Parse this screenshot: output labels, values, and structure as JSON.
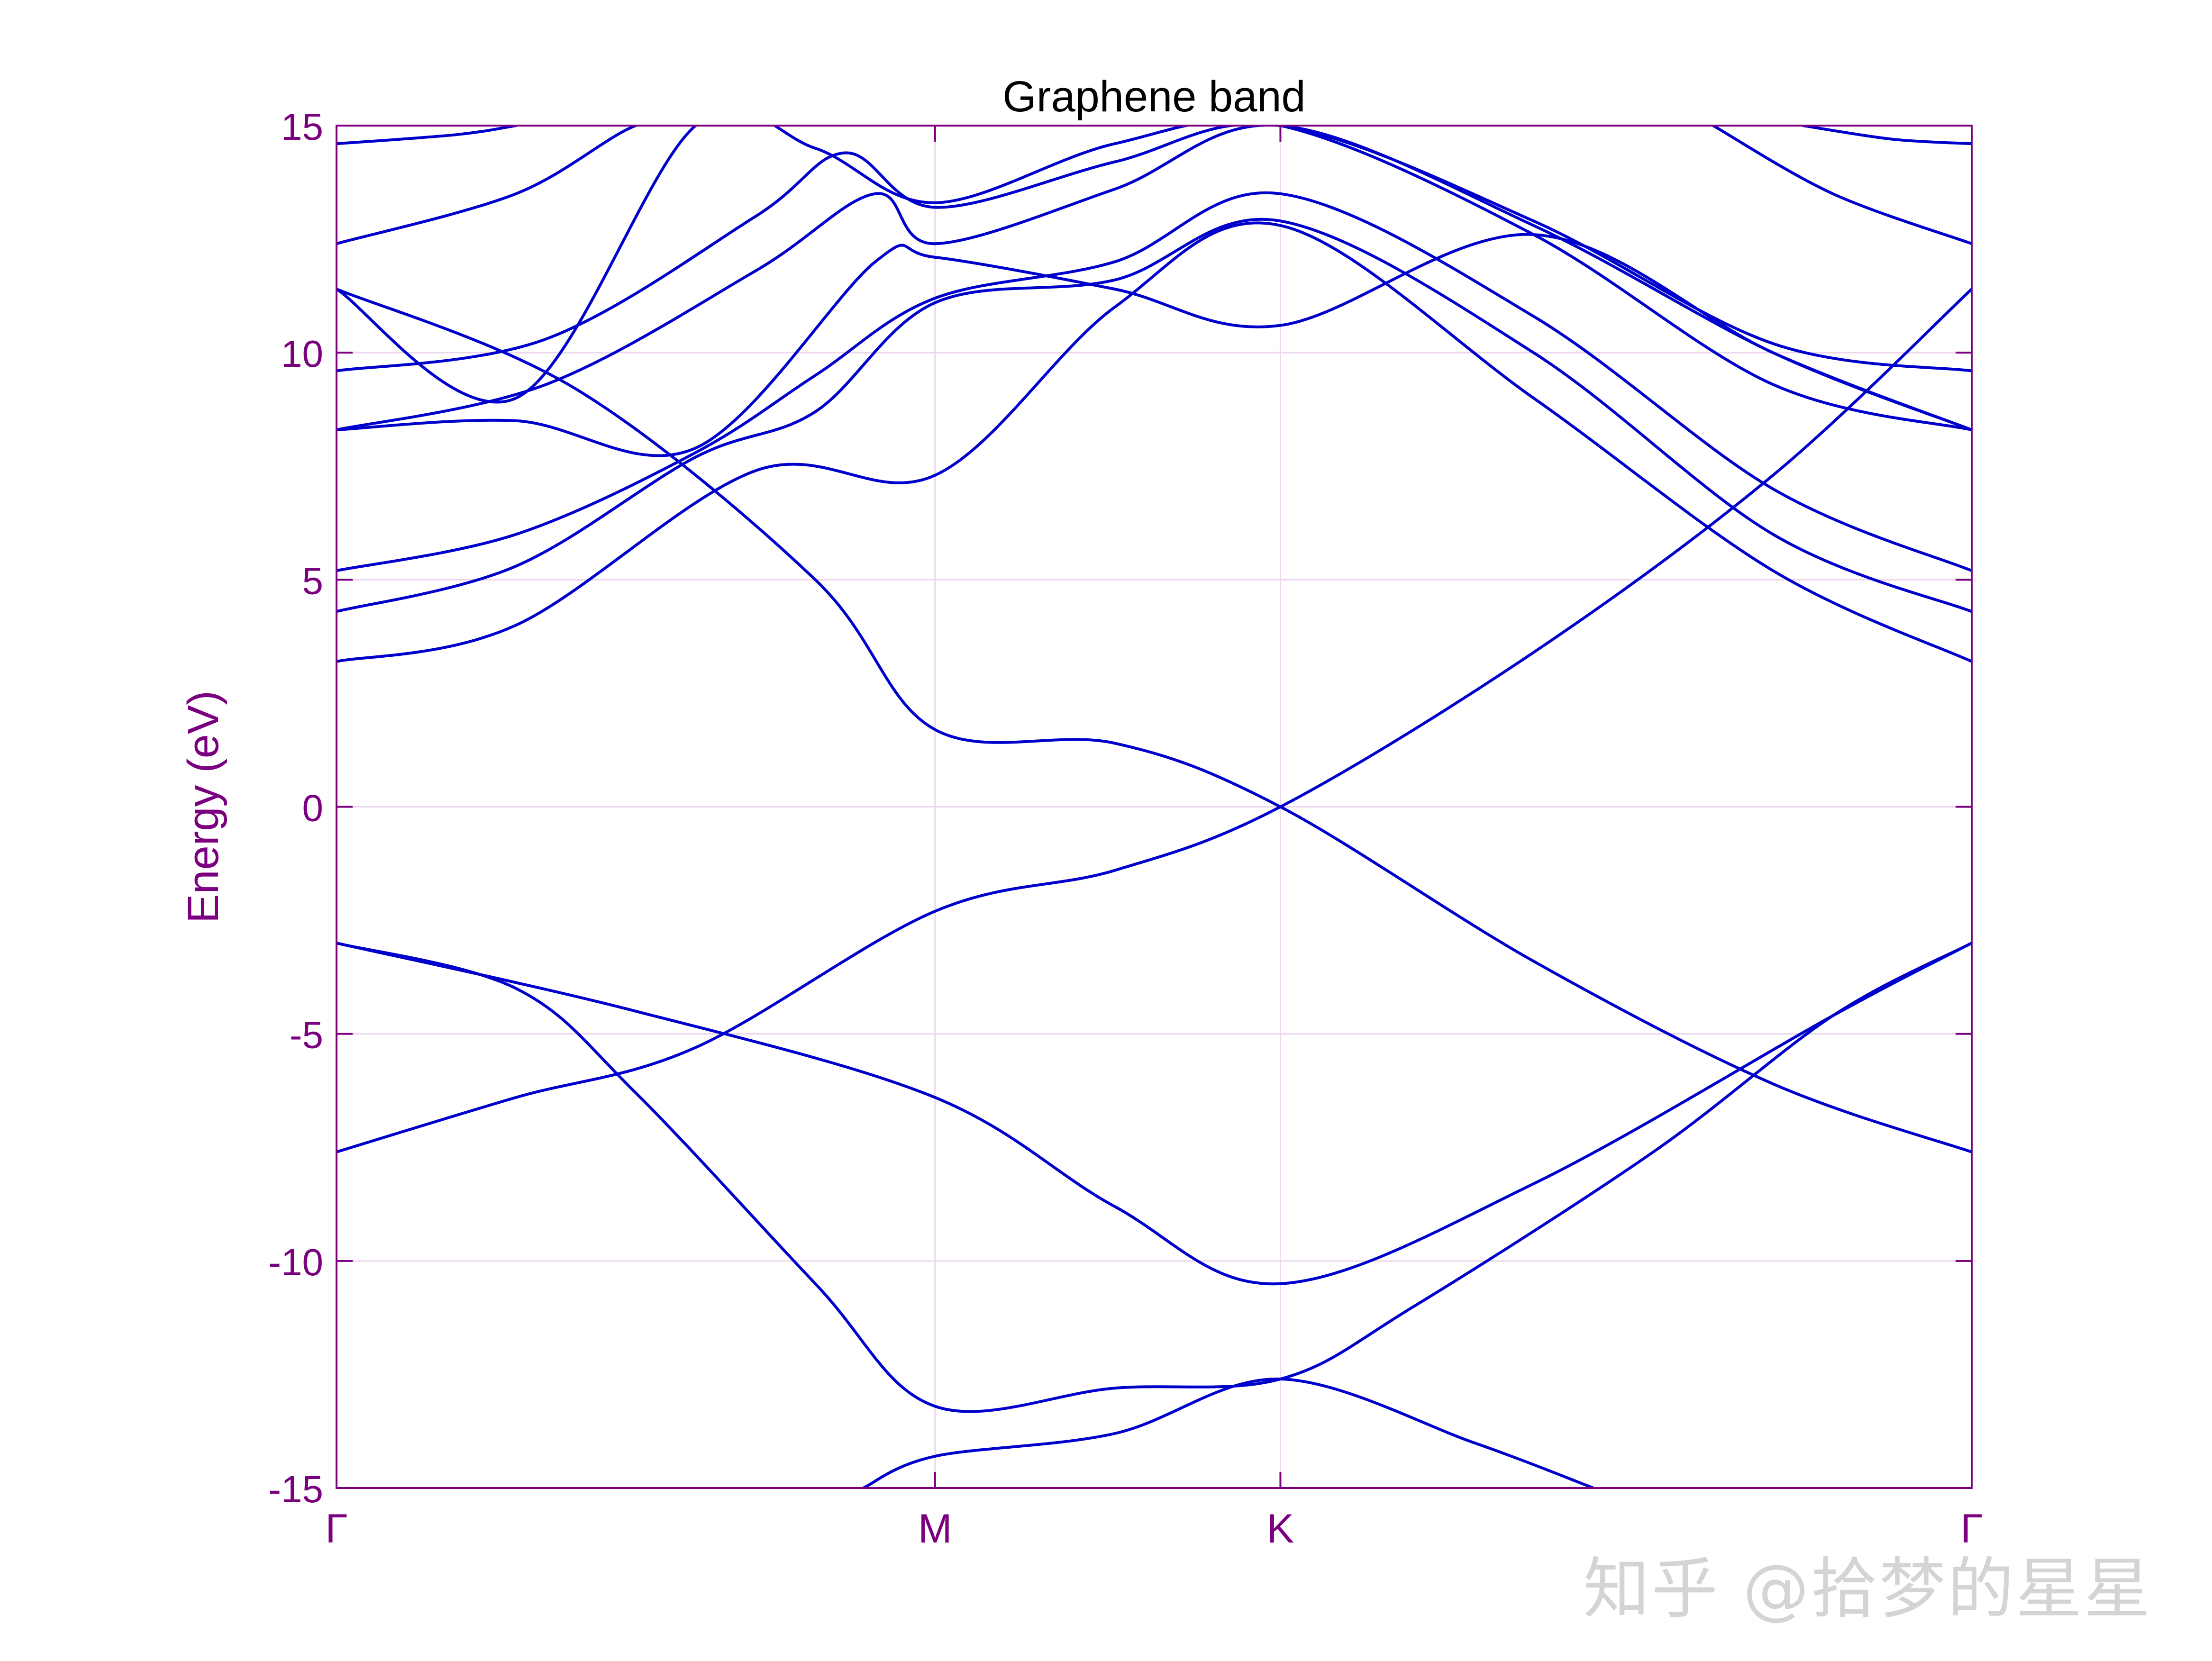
{
  "chart_data": {
    "type": "line",
    "title": "Graphene band",
    "ylabel": "Energy (eV)",
    "xlabel": "",
    "ylim": [
      -15,
      15
    ],
    "xlim": [
      0,
      2.732
    ],
    "yticks": [
      -15,
      -10,
      -5,
      0,
      5,
      10,
      15
    ],
    "ytick_labels": [
      "-15",
      "-10",
      "-5",
      "0",
      "5",
      "10",
      "15"
    ],
    "xticks": [
      0,
      1,
      1.577,
      2.732
    ],
    "xtick_labels": [
      "Γ",
      "M",
      "K",
      "Γ"
    ],
    "grid": true,
    "legend": "none",
    "colors": {
      "line": "#0000cc",
      "axis": "#7b0080",
      "grid": "#ecd6ec",
      "title": "#000000"
    },
    "series": [
      {
        "x": [
          0,
          0.5,
          1.0,
          1.3,
          1.577,
          2.0,
          2.5,
          2.732
        ],
        "values": [
          -3.0,
          -4.5,
          -6.4,
          -8.8,
          -10.5,
          -8.3,
          -4.6,
          -3.0
        ]
      },
      {
        "x": [
          0,
          0.3,
          0.5,
          0.8,
          1.0,
          1.3,
          1.577,
          1.8,
          2.2,
          2.5,
          2.732
        ],
        "values": [
          -3.0,
          -4.0,
          -6.3,
          -10.5,
          -13.2,
          -12.8,
          -12.6,
          -11.0,
          -7.6,
          -4.6,
          -3.0
        ]
      },
      {
        "x": [
          0,
          0.3,
          0.6,
          1.0,
          1.3,
          1.577,
          2.0,
          2.4,
          2.732
        ],
        "values": [
          -7.6,
          -6.4,
          -5.3,
          -2.3,
          -1.4,
          0.0,
          3.4,
          7.3,
          11.4
        ]
      },
      {
        "x": [
          0,
          0.4,
          0.8,
          1.0,
          1.3,
          1.577,
          2.0,
          2.4,
          2.732
        ],
        "values": [
          11.4,
          9.2,
          5.0,
          1.7,
          1.4,
          0.0,
          -3.4,
          -6.1,
          -7.6
        ]
      },
      {
        "x": [
          0.88,
          1.0,
          1.3,
          1.577,
          1.9,
          2.1
        ],
        "values": [
          -15.0,
          -14.3,
          -13.8,
          -12.6,
          -14.0,
          -15.0
        ]
      },
      {
        "x": [
          0,
          0.3,
          0.7,
          1.0,
          1.3,
          1.577,
          2.0,
          2.4,
          2.732
        ],
        "values": [
          3.2,
          4.0,
          7.4,
          7.3,
          11.0,
          12.8,
          9.0,
          5.2,
          3.2
        ]
      },
      {
        "x": [
          0,
          0.3,
          0.6,
          0.8,
          1.0,
          1.3,
          1.577,
          2.0,
          2.4,
          2.732
        ],
        "values": [
          4.3,
          5.3,
          7.7,
          8.7,
          11.1,
          11.6,
          12.9,
          10.0,
          6.0,
          4.3
        ]
      },
      {
        "x": [
          0,
          0.3,
          0.6,
          0.8,
          1.0,
          1.3,
          1.577,
          2.0,
          2.4,
          2.732
        ],
        "values": [
          5.2,
          6.0,
          7.8,
          9.5,
          11.2,
          12.0,
          13.5,
          10.8,
          7.0,
          5.2
        ]
      },
      {
        "x": [
          0,
          0.3,
          0.6,
          0.9,
          1.0,
          1.3,
          1.577,
          2.0,
          2.4,
          2.732
        ],
        "values": [
          8.3,
          8.5,
          7.9,
          12.0,
          12.1,
          11.4,
          10.6,
          12.6,
          10.0,
          8.3
        ]
      },
      {
        "x": [
          0,
          0.35,
          0.7,
          0.9,
          1.0,
          1.3,
          1.577,
          2.0,
          2.4,
          2.732
        ],
        "values": [
          8.3,
          9.3,
          11.8,
          13.5,
          12.4,
          13.6,
          15.0,
          12.8,
          10.0,
          8.3
        ]
      },
      {
        "x": [
          0,
          0.35,
          0.7,
          0.85,
          1.0,
          1.3,
          1.577,
          2.0,
          2.4,
          2.732
        ],
        "values": [
          9.6,
          10.3,
          13.0,
          14.4,
          13.2,
          14.2,
          15.0,
          12.9,
          10.2,
          9.6
        ]
      },
      {
        "x": [
          0,
          0.3,
          0.6,
          0.8,
          1.0,
          1.3,
          1.577,
          2.0,
          2.4,
          2.732
        ],
        "values": [
          11.4,
          9.0,
          15.0,
          14.5,
          13.3,
          14.6,
          15.0,
          12.6,
          9.3,
          8.3
        ]
      },
      {
        "x": [
          0,
          0.3,
          0.5,
          0.6
        ],
        "values": [
          12.4,
          13.5,
          15.0,
          15.0
        ]
      },
      {
        "x": [
          0,
          0.2,
          0.3
        ],
        "values": [
          14.6,
          14.8,
          15.0
        ]
      },
      {
        "x": [
          2.3,
          2.5,
          2.732
        ],
        "values": [
          15.0,
          13.5,
          12.4
        ]
      },
      {
        "x": [
          2.45,
          2.6,
          2.732
        ],
        "values": [
          15.0,
          14.7,
          14.6
        ]
      }
    ]
  },
  "watermark": "知乎 @拾梦的星星"
}
